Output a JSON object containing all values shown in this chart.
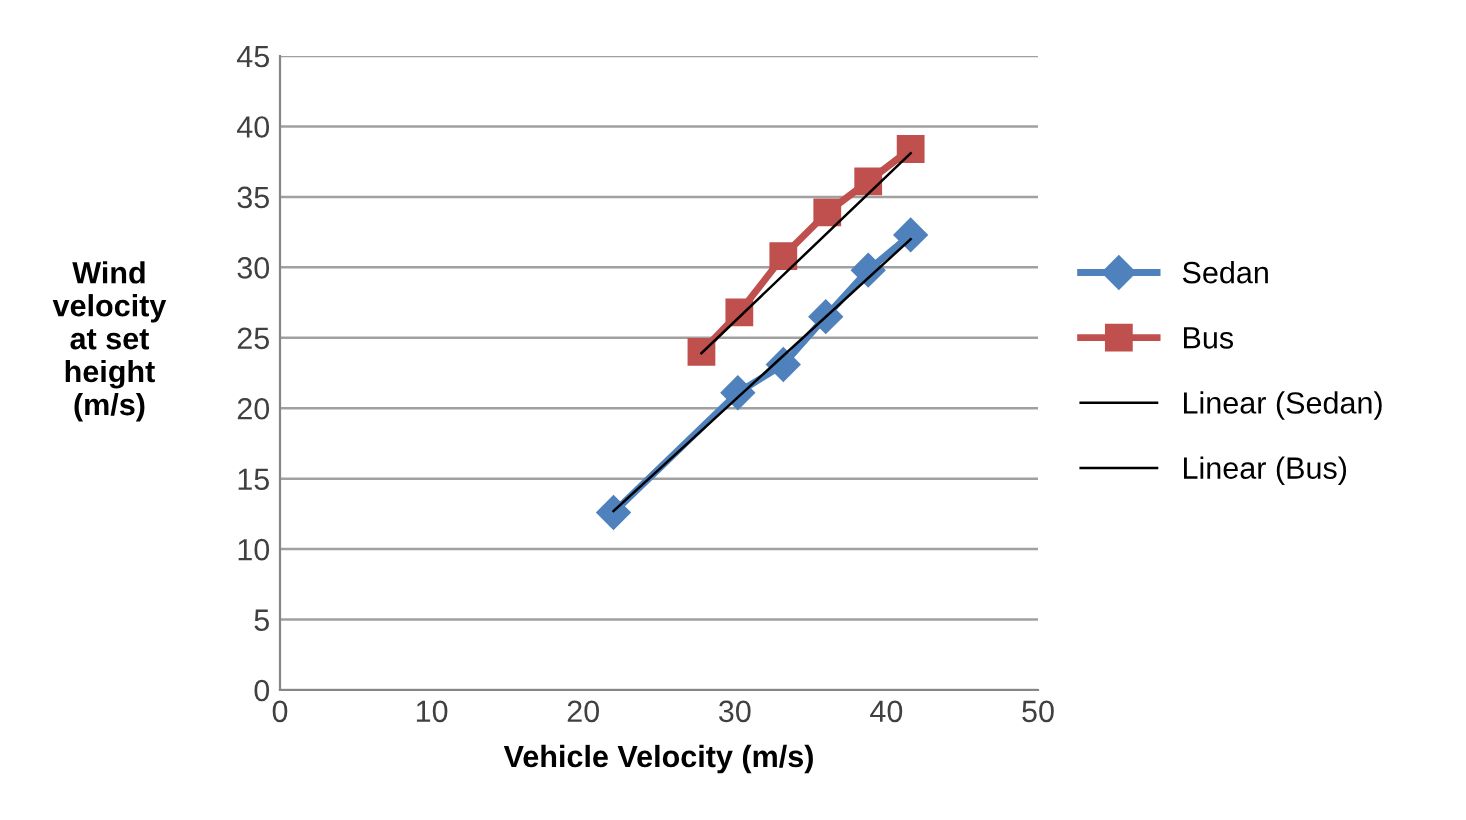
{
  "chart_data": {
    "type": "line",
    "xlabel": "Vehicle Velocity (m/s)",
    "ylabel": "Wind\nvelocity\nat set\nheight\n(m/s)",
    "xlim": [
      0,
      50
    ],
    "xticks": [
      0,
      10,
      20,
      30,
      40,
      50
    ],
    "ylim": [
      0,
      45
    ],
    "yticks": [
      0,
      5,
      10,
      15,
      20,
      25,
      30,
      35,
      40,
      45
    ],
    "grid": "y",
    "legend": "right",
    "series": [
      {
        "name": "Sedan",
        "color": "#4f81bd",
        "marker": "diamond",
        "x": [
          22.0,
          30.2,
          33.2,
          36.0,
          38.8,
          41.6
        ],
        "values": [
          12.6,
          21.1,
          23.1,
          26.5,
          29.8,
          32.3
        ]
      },
      {
        "name": "Bus",
        "color": "#c0504d",
        "marker": "square",
        "x": [
          27.8,
          30.3,
          33.2,
          36.1,
          38.8,
          41.6
        ],
        "values": [
          24.0,
          26.8,
          30.8,
          33.9,
          36.1,
          38.4
        ]
      },
      {
        "name": "Linear (Sedan)",
        "color": "#000000",
        "marker": "none",
        "x": [
          22.0,
          41.6
        ],
        "values": [
          12.7,
          32.0
        ]
      },
      {
        "name": "Linear (Bus)",
        "color": "#000000",
        "marker": "none",
        "x": [
          27.8,
          41.6
        ],
        "values": [
          23.9,
          38.1
        ]
      }
    ]
  }
}
